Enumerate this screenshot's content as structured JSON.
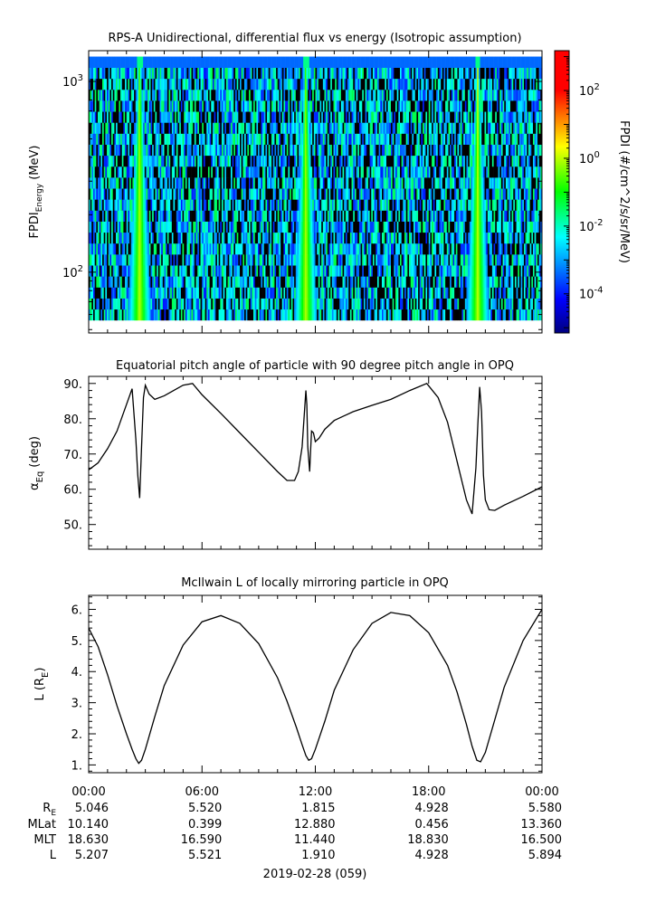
{
  "chart_data": [
    {
      "type": "heatmap",
      "title": "RPS-A Unidirectional, differential flux vs energy (Isotropic assumption)",
      "ylabel_main": "FPDI",
      "ylabel_sub": "Energy",
      "ylabel_unit": "(MeV)",
      "yscale": "log",
      "ylim": [
        48,
        1450
      ],
      "y_ticks": [
        {
          "value": 100,
          "base": "10",
          "exp": "2"
        },
        {
          "value": 1000,
          "base": "10",
          "exp": "3"
        }
      ],
      "energy_range": [
        56,
        1350
      ],
      "energy_bins": 24,
      "time_bins": 300,
      "colorbar": {
        "label": "FPDI (#/cm^2/s/sr/MeV)",
        "scale": "log",
        "range": [
          7e-06,
          1500
        ],
        "ticks": [
          {
            "value": 100,
            "base": "10",
            "exp": "2"
          },
          {
            "value": 1,
            "base": "10",
            "exp": "0"
          },
          {
            "value": 0.01,
            "base": "10",
            "exp": "-2"
          },
          {
            "value": 0.0001,
            "base": "10",
            "exp": "-4"
          }
        ]
      },
      "features": [
        {
          "kind": "enhanced flux band",
          "center_hour": 2.7,
          "description": "radiation belt crossing"
        },
        {
          "kind": "enhanced flux band",
          "center_hour": 11.5,
          "description": "radiation belt crossing"
        },
        {
          "kind": "enhanced flux band",
          "center_hour": 20.6,
          "description": "radiation belt crossing"
        }
      ],
      "background_flux_range": [
        0.0001,
        0.05
      ],
      "peak_flux": 1.0
    },
    {
      "type": "line",
      "title": "Equatorial pitch angle of particle with 90 degree pitch angle in OPQ",
      "ylabel_main": "α",
      "ylabel_sub": "Eq",
      "ylabel_unit": "(deg)",
      "ylim": [
        43,
        92
      ],
      "y_ticks": [
        "50.",
        "60.",
        "70.",
        "80.",
        "90."
      ],
      "y_tick_values": [
        50,
        60,
        70,
        80,
        90
      ],
      "series": [
        {
          "x": [
            0,
            0.5,
            1,
            1.5,
            2,
            2.3,
            2.5,
            2.6,
            2.7,
            2.8,
            2.9,
            3.0,
            3.2,
            3.5,
            4,
            4.5,
            5,
            5.5,
            6,
            7,
            8,
            9,
            10,
            10.5,
            10.9,
            11.1,
            11.3,
            11.5,
            11.55,
            11.6,
            11.7,
            11.75,
            11.8,
            11.9,
            12.0,
            12.2,
            12.5,
            13,
            14,
            15,
            16,
            17,
            17.9,
            18.5,
            19,
            19.5,
            20.0,
            20.3,
            20.5,
            20.6,
            20.7,
            20.8,
            20.9,
            21.0,
            21.2,
            21.5,
            22,
            23,
            24
          ],
          "y": [
            65.5,
            67.5,
            71.5,
            76.5,
            84,
            88.5,
            74,
            64,
            57.5,
            72,
            86,
            89.5,
            87,
            85.5,
            86.5,
            88,
            89.5,
            90,
            86.8,
            81.5,
            76,
            70.5,
            65,
            62.5,
            62.5,
            65,
            72,
            88,
            84,
            72,
            65,
            71,
            76.5,
            76,
            73.5,
            74.5,
            77,
            79.5,
            82,
            83.8,
            85.5,
            88,
            90,
            86,
            79,
            68,
            57,
            53,
            66,
            78,
            89,
            82,
            64,
            57,
            54.2,
            54,
            55.5,
            58,
            60.7
          ]
        }
      ]
    },
    {
      "type": "line",
      "title": "McIlwain L of locally mirroring particle in OPQ",
      "ylabel_main": "L (R",
      "ylabel_sub": "E",
      "ylabel_unit": ")",
      "ylim": [
        0.75,
        6.45
      ],
      "y_ticks": [
        "1.",
        "2.",
        "3.",
        "4.",
        "5.",
        "6."
      ],
      "y_tick_values": [
        1,
        2,
        3,
        4,
        5,
        6
      ],
      "series": [
        {
          "x": [
            0,
            0.5,
            1,
            1.5,
            2,
            2.3,
            2.5,
            2.65,
            2.8,
            3,
            3.5,
            4,
            5,
            6,
            7,
            8,
            9,
            10,
            10.5,
            11,
            11.3,
            11.5,
            11.65,
            11.8,
            12,
            12.5,
            13,
            14,
            15,
            16,
            17,
            18,
            19,
            19.5,
            20,
            20.3,
            20.55,
            20.75,
            21,
            21.5,
            22,
            23,
            24
          ],
          "x_note": "hours UT",
          "y": [
            5.4,
            4.8,
            3.9,
            2.9,
            2.0,
            1.5,
            1.2,
            1.05,
            1.15,
            1.5,
            2.55,
            3.55,
            4.85,
            5.6,
            5.8,
            5.55,
            4.9,
            3.8,
            3.05,
            2.2,
            1.65,
            1.3,
            1.15,
            1.2,
            1.5,
            2.4,
            3.4,
            4.7,
            5.55,
            5.9,
            5.8,
            5.25,
            4.2,
            3.35,
            2.3,
            1.6,
            1.15,
            1.1,
            1.4,
            2.45,
            3.5,
            5.0,
            6.0
          ]
        }
      ]
    }
  ],
  "x_axis": {
    "tick_labels": [
      "00:00",
      "06:00",
      "12:00",
      "18:00",
      "00:00"
    ],
    "date_label": "2019-02-28 (059)",
    "range_hours": [
      0,
      24
    ]
  },
  "ephemeris": {
    "rows": [
      {
        "label_main": "R",
        "label_sub": "E",
        "values": [
          "5.046",
          "5.520",
          "1.815",
          "4.928",
          "5.580"
        ]
      },
      {
        "label_main": "MLat",
        "label_sub": "",
        "values": [
          "10.140",
          "0.399",
          "12.880",
          "0.456",
          "13.360"
        ]
      },
      {
        "label_main": "MLT",
        "label_sub": "",
        "values": [
          "18.630",
          "16.590",
          "11.440",
          "18.830",
          "16.500"
        ]
      },
      {
        "label_main": "L",
        "label_sub": "",
        "values": [
          "5.207",
          "5.521",
          "1.910",
          "4.928",
          "5.894"
        ]
      }
    ]
  }
}
